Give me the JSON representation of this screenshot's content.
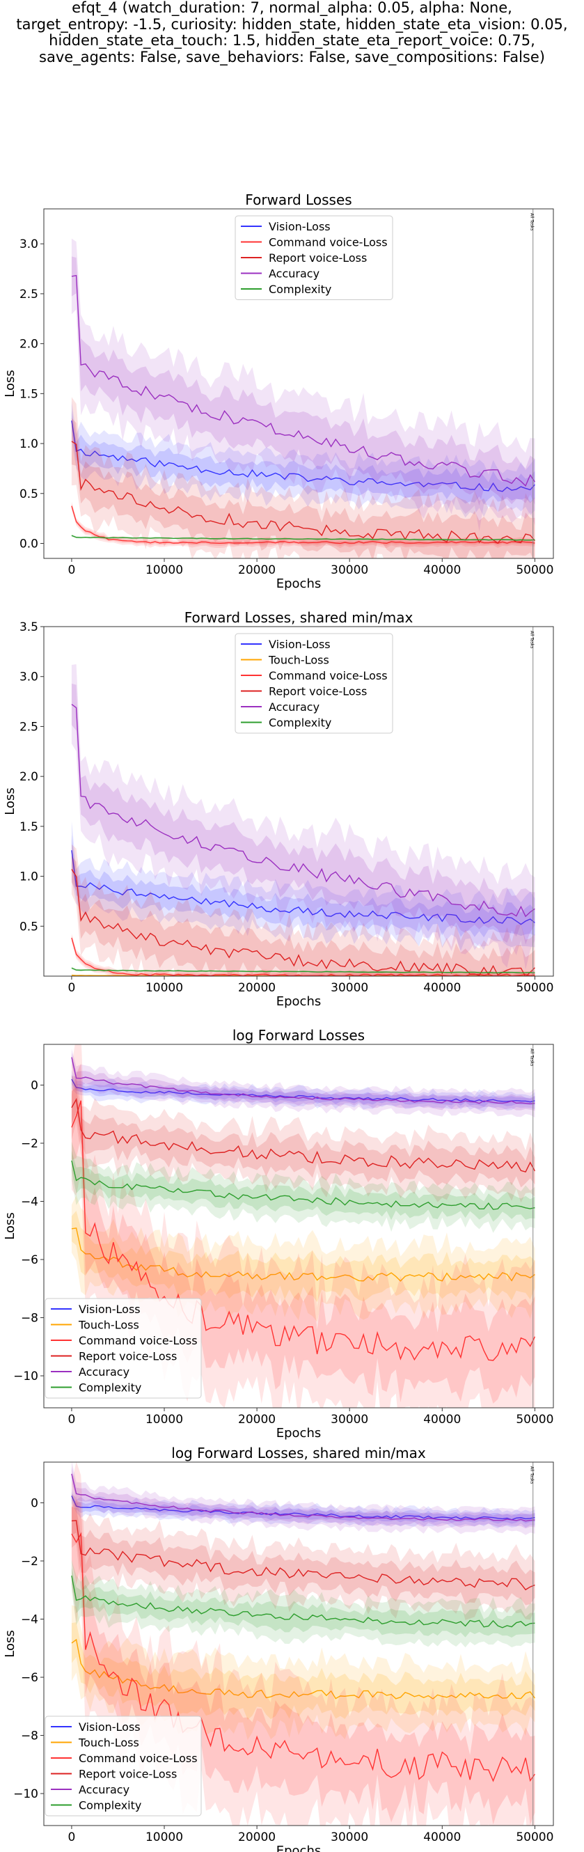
{
  "suptitle_lines": [
    "efqt_4 (watch_duration: 7, normal_alpha: 0.05, alpha: None,",
    "target_entropy: -1.5, curiosity: hidden_state, hidden_state_eta_vision: 0.05,",
    "hidden_state_eta_touch: 1.5, hidden_state_eta_report_voice: 0.75,",
    "save_agents: False, save_behaviors: False, save_compositions: False)"
  ],
  "colors": {
    "vision": "#3333ff",
    "touch": "#ffa500",
    "command": "#ff3333",
    "report": "#dd2222",
    "accuracy": "#9b30c0",
    "complexity": "#2e9e2e"
  },
  "chart_data": [
    {
      "type": "line",
      "title": "Forward Losses",
      "xlabel": "Epochs",
      "ylabel": "Loss",
      "xlim": [
        -3000,
        52000
      ],
      "ylim": [
        -0.15,
        3.35
      ],
      "xticks": [
        0,
        10000,
        20000,
        30000,
        40000,
        50000
      ],
      "yticks": [
        0.0,
        0.5,
        1.0,
        1.5,
        2.0,
        2.5,
        3.0
      ],
      "ytick_labels": [
        "0.0",
        "0.5",
        "1.0",
        "1.5",
        "2.0",
        "2.5",
        "3.0"
      ],
      "ylabel_shown": true,
      "legend_loc": "upper-center",
      "vline_x": 49800,
      "vline_label": "All Tasks",
      "series": [
        {
          "name": "Vision-Loss",
          "key": "vision",
          "start": 1.25,
          "end": 0.55,
          "spread": 0.12,
          "noise": 0.04,
          "k": 2.0,
          "drop_len": 1
        },
        {
          "name": "Command voice-Loss",
          "key": "command",
          "start": 0.38,
          "end": 0.01,
          "spread": 0.02,
          "noise": 0.01,
          "k": 25,
          "drop_len": 1
        },
        {
          "name": "Report voice-Loss",
          "key": "report",
          "start": 1.05,
          "end": 0.05,
          "spread": 0.18,
          "noise": 0.06,
          "k": 3.0,
          "drop_len": 2
        },
        {
          "name": "Accuracy",
          "key": "accuracy",
          "start": 2.7,
          "end": 0.62,
          "spread": 0.22,
          "noise": 0.06,
          "k": 1.0,
          "drop_len": 2
        },
        {
          "name": "Complexity",
          "key": "complexity",
          "start": 0.08,
          "end": 0.035,
          "spread": 0.005,
          "noise": 0.003,
          "k": 1.0,
          "drop_len": 1
        }
      ]
    },
    {
      "type": "line",
      "title": "Forward Losses, shared min/max",
      "xlabel": "Epochs",
      "ylabel": "Loss",
      "xlim": [
        -3000,
        52000
      ],
      "ylim": [
        0.0,
        3.5
      ],
      "xticks": [
        0,
        10000,
        20000,
        30000,
        40000,
        50000
      ],
      "yticks": [
        0.5,
        1.0,
        1.5,
        2.0,
        2.5,
        3.0,
        3.5
      ],
      "ytick_labels": [
        "0.5",
        "1.0",
        "1.5",
        "2.0",
        "2.5",
        "3.0",
        "3.5"
      ],
      "ylabel_shown": true,
      "legend_loc": "upper-center",
      "vline_x": 49800,
      "vline_label": "All Tasks",
      "series": [
        {
          "name": "Vision-Loss",
          "key": "vision",
          "start": 1.25,
          "end": 0.55,
          "spread": 0.12,
          "noise": 0.04,
          "k": 2.0,
          "drop_len": 1
        },
        {
          "name": "Touch-Loss",
          "key": "touch",
          "start": 0.01,
          "end": 0.002,
          "spread": 0.002,
          "noise": 0.001,
          "k": 1.0,
          "drop_len": 1
        },
        {
          "name": "Command voice-Loss",
          "key": "command",
          "start": 0.38,
          "end": 0.01,
          "spread": 0.02,
          "noise": 0.01,
          "k": 25,
          "drop_len": 1
        },
        {
          "name": "Report voice-Loss",
          "key": "report",
          "start": 1.05,
          "end": 0.05,
          "spread": 0.18,
          "noise": 0.06,
          "k": 3.0,
          "drop_len": 2
        },
        {
          "name": "Accuracy",
          "key": "accuracy",
          "start": 2.7,
          "end": 0.62,
          "spread": 0.22,
          "noise": 0.06,
          "k": 1.0,
          "drop_len": 2
        },
        {
          "name": "Complexity",
          "key": "complexity",
          "start": 0.08,
          "end": 0.035,
          "spread": 0.005,
          "noise": 0.003,
          "k": 1.0,
          "drop_len": 1
        }
      ]
    },
    {
      "type": "line",
      "title": "log Forward Losses",
      "xlabel": "Epochs",
      "ylabel": "Loss",
      "xlim": [
        -3000,
        52000
      ],
      "ylim": [
        -11.1,
        1.4
      ],
      "xticks": [
        0,
        10000,
        20000,
        30000,
        40000,
        50000
      ],
      "yticks": [
        -10,
        -8,
        -6,
        -4,
        -2,
        0
      ],
      "ytick_labels": [
        "−10",
        "−8",
        "−6",
        "−4",
        "−2",
        "0"
      ],
      "ylabel_shown": true,
      "legend_loc": "lower-left",
      "vline_x": 49800,
      "vline_label": "All Tasks",
      "series": [
        {
          "name": "Vision-Loss",
          "key": "vision",
          "start": 0.25,
          "end": -0.55,
          "spread": 0.15,
          "noise": 0.05,
          "k": 1.5,
          "drop_len": 1
        },
        {
          "name": "Touch-Loss",
          "key": "touch",
          "start": -4.8,
          "end": -6.6,
          "spread": 0.6,
          "noise": 0.15,
          "k": 8.0,
          "drop_len": 2
        },
        {
          "name": "Command voice-Loss",
          "key": "command",
          "start": -1.0,
          "end": -9.1,
          "spread": 1.2,
          "noise": 0.5,
          "k": 5.0,
          "drop_len": 3
        },
        {
          "name": "Report voice-Loss",
          "key": "report",
          "start": -0.6,
          "end": -2.8,
          "spread": 0.5,
          "noise": 0.2,
          "k": 2.0,
          "drop_len": 2
        },
        {
          "name": "Accuracy",
          "key": "accuracy",
          "start": 1.0,
          "end": -0.6,
          "spread": 0.2,
          "noise": 0.05,
          "k": 3.0,
          "drop_len": 1
        },
        {
          "name": "Complexity",
          "key": "complexity",
          "start": -2.5,
          "end": -4.2,
          "spread": 0.35,
          "noise": 0.12,
          "k": 2.0,
          "drop_len": 1
        }
      ]
    },
    {
      "type": "line",
      "title": "log Forward Losses, shared min/max",
      "xlabel": "Epochs",
      "ylabel": "Loss",
      "xlim": [
        -3000,
        52000
      ],
      "ylim": [
        -11.1,
        1.4
      ],
      "xticks": [
        0,
        10000,
        20000,
        30000,
        40000,
        50000
      ],
      "yticks": [
        -10,
        -8,
        -6,
        -4,
        -2,
        0
      ],
      "ytick_labels": [
        "−10",
        "−8",
        "−6",
        "−4",
        "−2",
        "0"
      ],
      "ylabel_shown": true,
      "legend_loc": "lower-left",
      "vline_x": 49800,
      "vline_label": "All Tasks",
      "series": [
        {
          "name": "Vision-Loss",
          "key": "vision",
          "start": 0.25,
          "end": -0.55,
          "spread": 0.15,
          "noise": 0.05,
          "k": 1.5,
          "drop_len": 1
        },
        {
          "name": "Touch-Loss",
          "key": "touch",
          "start": -4.8,
          "end": -6.6,
          "spread": 0.6,
          "noise": 0.15,
          "k": 8.0,
          "drop_len": 2
        },
        {
          "name": "Command voice-Loss",
          "key": "command",
          "start": -1.0,
          "end": -9.1,
          "spread": 1.2,
          "noise": 0.5,
          "k": 5.0,
          "drop_len": 3
        },
        {
          "name": "Report voice-Loss",
          "key": "report",
          "start": -0.6,
          "end": -2.8,
          "spread": 0.5,
          "noise": 0.2,
          "k": 2.0,
          "drop_len": 2
        },
        {
          "name": "Accuracy",
          "key": "accuracy",
          "start": 1.0,
          "end": -0.6,
          "spread": 0.2,
          "noise": 0.05,
          "k": 3.0,
          "drop_len": 1
        },
        {
          "name": "Complexity",
          "key": "complexity",
          "start": -2.5,
          "end": -4.2,
          "spread": 0.35,
          "noise": 0.12,
          "k": 2.0,
          "drop_len": 1
        }
      ]
    }
  ]
}
